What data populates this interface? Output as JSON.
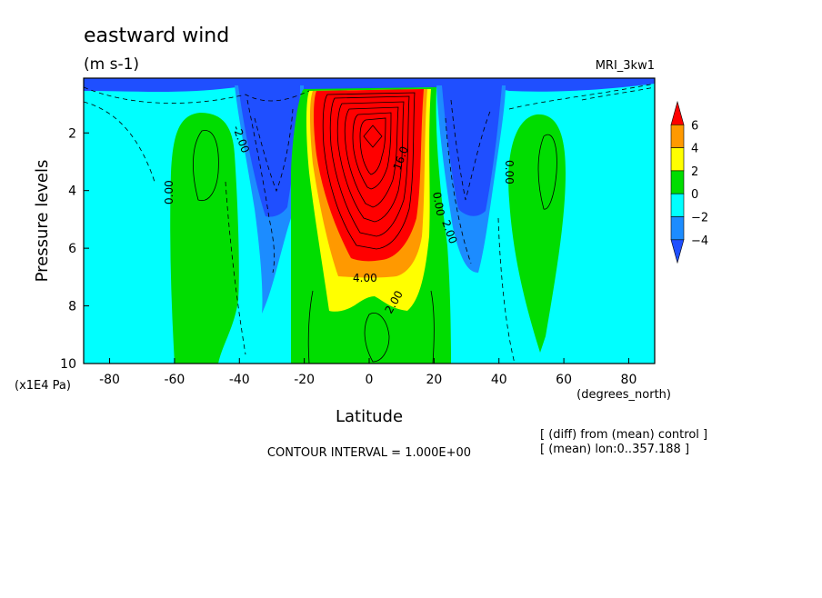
{
  "header": {
    "title": "eastward wind",
    "units": "(m s-1)",
    "model": "MRI_3kw1"
  },
  "footer": {
    "contour_interval": "CONTOUR INTERVAL = 1.000E+00",
    "diff_note": "[ (diff) from (mean) control ]",
    "mean_note": "[ (mean) lon:0..357.188 ]"
  },
  "colorbar": {
    "labels": [
      "6",
      "4",
      "2",
      "0",
      "−2",
      "−4"
    ],
    "colors": [
      "#ff0000",
      "#ff9900",
      "#ffff00",
      "#00dd00",
      "#00ffff",
      "#1c8cff",
      "#1f4fff"
    ]
  },
  "chart_data": {
    "type": "contour",
    "title": "eastward wind",
    "subtitle": "(m s-1)",
    "xlabel": "Latitude",
    "xunit": "(degrees_north)",
    "ylabel": "Pressure levels",
    "yunit": "(x1E4 Pa)",
    "xlim": [
      -88,
      88
    ],
    "ylim": [
      10,
      0.1
    ],
    "x_ticks": [
      -80,
      -60,
      -40,
      -20,
      0,
      20,
      40,
      60,
      80
    ],
    "x_tick_labels": [
      "-80",
      "-60",
      "-40",
      "-20",
      "0",
      "20",
      "40",
      "60",
      "80"
    ],
    "y_ticks": [
      2,
      4,
      6,
      8,
      10
    ],
    "y_tick_labels": [
      "2",
      "4",
      "6",
      "8",
      "10"
    ],
    "contour_interval": 1.0,
    "levels": [
      -4,
      -2,
      0,
      2,
      4,
      6
    ],
    "contour_labels": [
      "0.00",
      "2.00",
      "4.00",
      "16.0",
      "-2.00",
      "0.00",
      "2.00",
      "0.00"
    ],
    "features": [
      {
        "kind": "max",
        "lat": 0,
        "p": 2.0,
        "value": 16
      },
      {
        "kind": "positive",
        "lat": -50,
        "p": 3.5,
        "value": 1
      },
      {
        "kind": "positive",
        "lat": 55,
        "p": 3.0,
        "value": 1
      },
      {
        "kind": "negative",
        "lat": -33,
        "p": 2.5,
        "value": -4
      },
      {
        "kind": "negative",
        "lat": 32,
        "p": 2.5,
        "value": -4
      }
    ]
  }
}
